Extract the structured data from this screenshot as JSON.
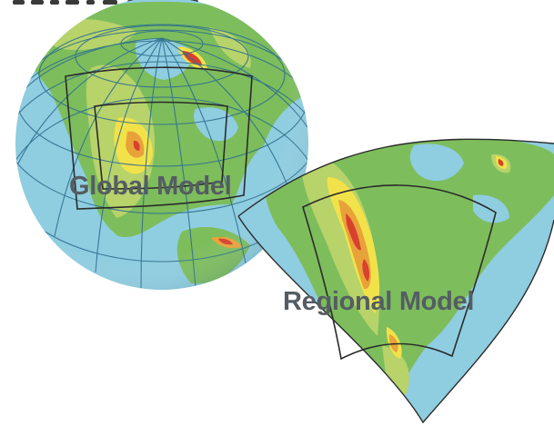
{
  "labels": {
    "global_model": "Global Model",
    "regional_model": "Regional Model"
  },
  "colors": {
    "ocean": "#8fcde0",
    "lowland": "#7dbd5c",
    "upland": "#b7d36a",
    "highland": "#f2e24a",
    "mountain": "#e8a23a",
    "peak": "#d8412e",
    "grid": "#2f6f8f",
    "box": "#2b2b2b",
    "label": "#555d63"
  }
}
